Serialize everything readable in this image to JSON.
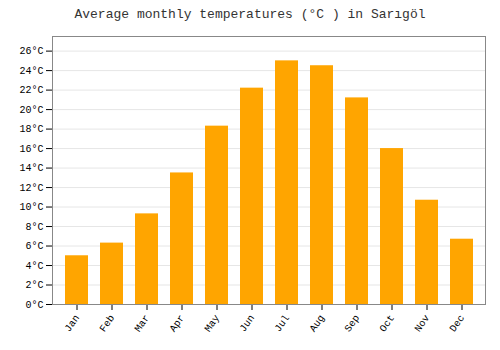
{
  "chart_data": {
    "type": "bar",
    "title": "Average monthly temperatures (°C ) in Sarıgöl",
    "categories": [
      "Jan",
      "Feb",
      "Mar",
      "Apr",
      "May",
      "Jun",
      "Jul",
      "Aug",
      "Sep",
      "Oct",
      "Nov",
      "Dec"
    ],
    "values": [
      5.0,
      6.3,
      9.3,
      13.5,
      18.3,
      22.2,
      25.0,
      24.5,
      21.2,
      16.0,
      10.7,
      6.7
    ],
    "color": "#FFA500",
    "ylim": [
      0,
      27.5
    ],
    "yticks": [
      {
        "value": 0,
        "label": "0°C"
      },
      {
        "value": 2,
        "label": "2°C"
      },
      {
        "value": 4,
        "label": "4°C"
      },
      {
        "value": 6,
        "label": "6°C"
      },
      {
        "value": 8,
        "label": "8°C"
      },
      {
        "value": 10,
        "label": "10°C"
      },
      {
        "value": 12,
        "label": "12°C"
      },
      {
        "value": 14,
        "label": "14°C"
      },
      {
        "value": 16,
        "label": "16°C"
      },
      {
        "value": 18,
        "label": "18°C"
      },
      {
        "value": 20,
        "label": "20°C"
      },
      {
        "value": 22,
        "label": "22°C"
      },
      {
        "value": 24,
        "label": "24°C"
      },
      {
        "value": 26,
        "label": "26°C"
      }
    ],
    "grid": true
  }
}
